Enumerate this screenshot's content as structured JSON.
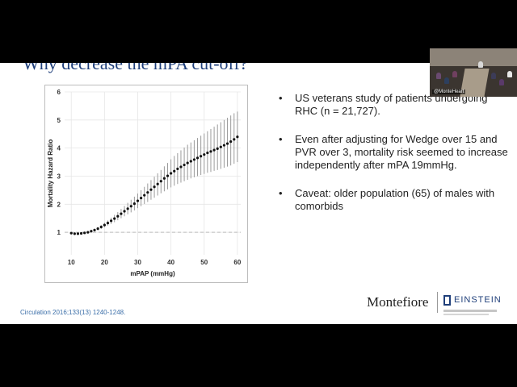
{
  "slide": {
    "title": "Why decrease the mPA cut-off?",
    "bullets": [
      "US veterans study of patients undergoing RHC (n = 21,727).",
      "Even after adjusting for Wedge over 15 and PVR over 3, mortality risk seemed to increase independently after mPA 19mmHg.",
      "Caveat: older population (65) of males with comorbids"
    ],
    "bullet_symbol": "•",
    "citation": "Circulation 2016;133(13) 1240-1248.",
    "logo_montefiore": "Montefiore",
    "logo_einstein": "EINSTEIN"
  },
  "video": {
    "label": "@MonteHeart"
  },
  "chart_data": {
    "type": "scatter",
    "xlabel": "mPAP (mmHg)",
    "ylabel": "Mortality Hazard Ratio",
    "xlim": [
      8,
      61
    ],
    "ylim": [
      0.2,
      6
    ],
    "xticks": [
      10,
      20,
      30,
      40,
      50,
      60
    ],
    "yticks": [
      1,
      2,
      3,
      4,
      5,
      6
    ],
    "reference_line": 1,
    "grid": true,
    "colors": {
      "points": "#111111",
      "error_bars": "#9a9a9a",
      "reference": "#bbbbbb",
      "grid": "#e6e6e6"
    },
    "x": [
      10,
      11,
      12,
      13,
      14,
      15,
      16,
      17,
      18,
      19,
      20,
      21,
      22,
      23,
      24,
      25,
      26,
      27,
      28,
      29,
      30,
      31,
      32,
      33,
      34,
      35,
      36,
      37,
      38,
      39,
      40,
      41,
      42,
      43,
      44,
      45,
      46,
      47,
      48,
      49,
      50,
      51,
      52,
      53,
      54,
      55,
      56,
      57,
      58,
      59,
      60
    ],
    "y": [
      0.97,
      0.95,
      0.95,
      0.96,
      0.98,
      1.0,
      1.04,
      1.08,
      1.13,
      1.19,
      1.26,
      1.33,
      1.41,
      1.49,
      1.57,
      1.66,
      1.75,
      1.84,
      1.93,
      2.02,
      2.12,
      2.22,
      2.32,
      2.42,
      2.52,
      2.62,
      2.72,
      2.82,
      2.92,
      3.01,
      3.1,
      3.18,
      3.26,
      3.33,
      3.4,
      3.47,
      3.53,
      3.59,
      3.65,
      3.71,
      3.77,
      3.83,
      3.88,
      3.93,
      3.98,
      4.04,
      4.1,
      4.16,
      4.23,
      4.31,
      4.4
    ],
    "lower": [
      0.93,
      0.92,
      0.92,
      0.93,
      0.95,
      0.97,
      1.0,
      1.03,
      1.07,
      1.12,
      1.18,
      1.24,
      1.3,
      1.36,
      1.43,
      1.5,
      1.57,
      1.64,
      1.71,
      1.78,
      1.86,
      1.93,
      2.01,
      2.08,
      2.16,
      2.23,
      2.31,
      2.39,
      2.46,
      2.53,
      2.6,
      2.66,
      2.72,
      2.77,
      2.82,
      2.87,
      2.92,
      2.96,
      3.0,
      3.04,
      3.08,
      3.12,
      3.15,
      3.19,
      3.22,
      3.26,
      3.3,
      3.34,
      3.38,
      3.44,
      3.5
    ],
    "upper": [
      1.01,
      0.98,
      0.98,
      0.99,
      1.01,
      1.03,
      1.08,
      1.13,
      1.19,
      1.26,
      1.34,
      1.42,
      1.52,
      1.62,
      1.72,
      1.83,
      1.94,
      2.05,
      2.16,
      2.27,
      2.38,
      2.5,
      2.62,
      2.74,
      2.86,
      2.98,
      3.1,
      3.22,
      3.35,
      3.47,
      3.6,
      3.72,
      3.82,
      3.92,
      4.02,
      4.12,
      4.2,
      4.28,
      4.36,
      4.44,
      4.52,
      4.6,
      4.68,
      4.76,
      4.84,
      4.92,
      5.0,
      5.08,
      5.16,
      5.24,
      5.3
    ]
  }
}
